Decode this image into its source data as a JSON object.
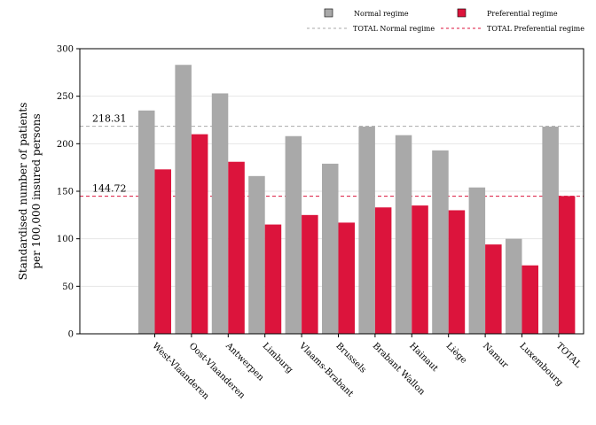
{
  "chart_data": {
    "type": "bar",
    "categories": [
      "West-Vlaanderen",
      "Oost-Vlaanderen",
      "Antwerpen",
      "Limburg",
      "Vlaams-Brabant",
      "Brussels",
      "Brabant Wallon",
      "Hainaut",
      "Liège",
      "Namur",
      "Luxembourg",
      "TOTAL"
    ],
    "series": [
      {
        "name": "Normal regime",
        "color": "#a9a9a9",
        "values": [
          235,
          283,
          253,
          166,
          208,
          179,
          218,
          209,
          193,
          154,
          100,
          218
        ]
      },
      {
        "name": "Preferential regime",
        "color": "#dc143c",
        "values": [
          173,
          210,
          181,
          115,
          125,
          117,
          133,
          135,
          130,
          94,
          72,
          145
        ]
      }
    ],
    "reference_lines": [
      {
        "name": "TOTAL Normal regime",
        "value": 218.31,
        "label": "218.31",
        "color": "#a9a9a9",
        "style": "dashed"
      },
      {
        "name": "TOTAL Preferential regime",
        "value": 144.72,
        "label": "144.72",
        "color": "#dc143c",
        "style": "dashed"
      }
    ],
    "ylabel_lines": [
      "Standardised number of patients",
      "per 100,000 insured persons"
    ],
    "xlabel": "",
    "ylim": [
      0,
      300
    ],
    "yticks": [
      0,
      50,
      100,
      150,
      200,
      250,
      300
    ],
    "grid": true,
    "legend_position": "top-right"
  }
}
